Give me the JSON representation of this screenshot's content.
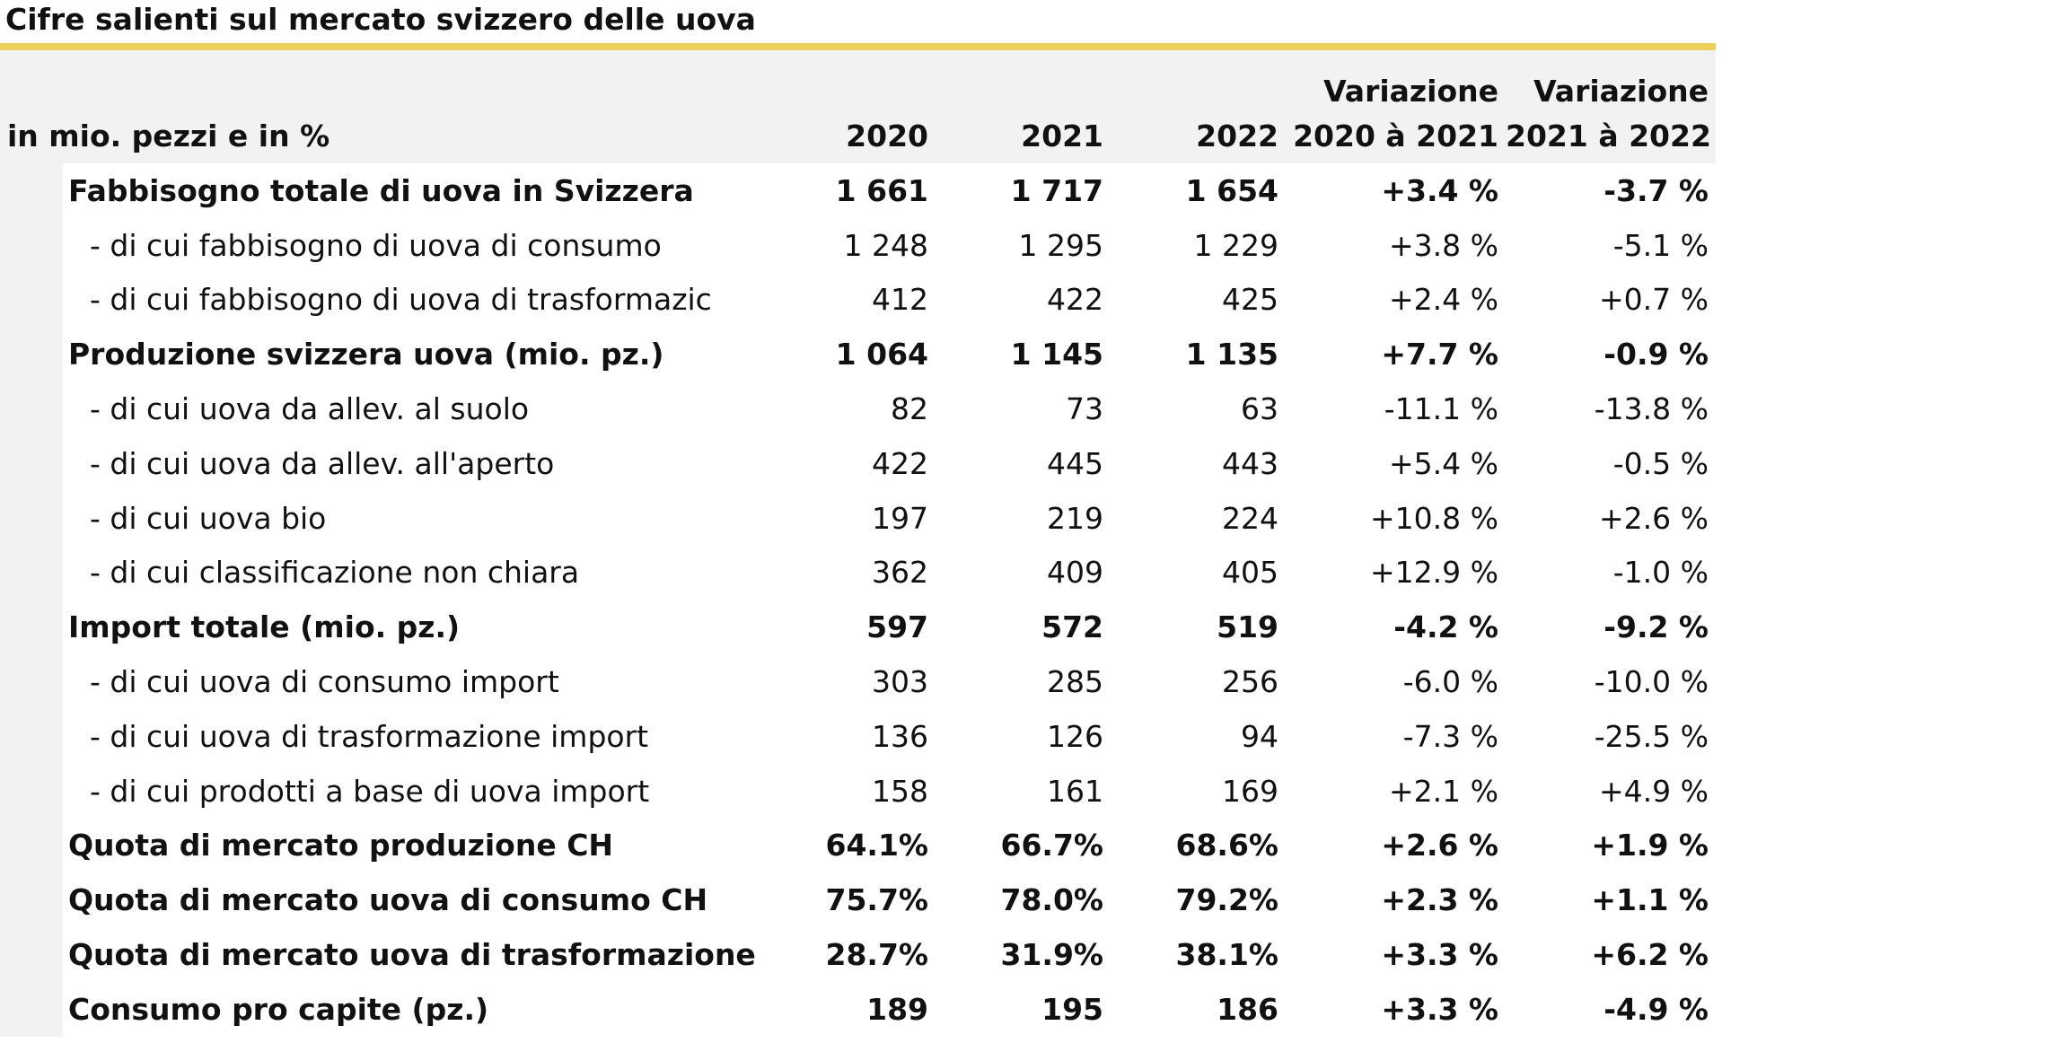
{
  "title": "Cifre salienti sul mercato svizzero delle uova",
  "colors": {
    "accent": "#ecd058",
    "header_bg": "#f2f2f2",
    "text": "#111111"
  },
  "chart_data": {
    "type": "table",
    "title": "Cifre salienti sul mercato svizzero delle uova",
    "unit_label": "in mio. pezzi e in %",
    "columns": [
      {
        "line1": "",
        "line2": "2020"
      },
      {
        "line1": "",
        "line2": "2021"
      },
      {
        "line1": "",
        "line2": "2022"
      },
      {
        "line1": "Variazione",
        "line2": "2020 à 2021"
      },
      {
        "line1": "Variazione",
        "line2": "2021 à 2022"
      }
    ],
    "rows": [
      {
        "label": "Fabbisogno totale di uova in Svizzera",
        "level": 0,
        "bold": true,
        "values": [
          "1 661",
          "1 717",
          "1 654",
          "+3.4 %",
          "-3.7 %"
        ]
      },
      {
        "label": "- di cui fabbisogno di uova di consumo",
        "level": 1,
        "bold": false,
        "values": [
          "1 248",
          "1 295",
          "1 229",
          "+3.8 %",
          "-5.1 %"
        ]
      },
      {
        "label": "- di cui fabbisogno di uova di trasformazic",
        "level": 1,
        "bold": false,
        "values": [
          "412",
          "422",
          "425",
          "+2.4 %",
          "+0.7 %"
        ]
      },
      {
        "label": "Produzione svizzera uova (mio. pz.)",
        "level": 0,
        "bold": true,
        "values": [
          "1 064",
          "1 145",
          "1 135",
          "+7.7 %",
          "-0.9 %"
        ]
      },
      {
        "label": "- di cui uova da allev. al suolo",
        "level": 1,
        "bold": false,
        "values": [
          "82",
          "73",
          "63",
          "-11.1 %",
          "-13.8 %"
        ]
      },
      {
        "label": "- di cui uova da allev. all'aperto",
        "level": 1,
        "bold": false,
        "values": [
          "422",
          "445",
          "443",
          "+5.4 %",
          "-0.5 %"
        ]
      },
      {
        "label": "- di cui uova bio",
        "level": 1,
        "bold": false,
        "values": [
          "197",
          "219",
          "224",
          "+10.8 %",
          "+2.6 %"
        ]
      },
      {
        "label": "- di cui classificazione non chiara",
        "level": 1,
        "bold": false,
        "values": [
          "362",
          "409",
          "405",
          "+12.9 %",
          "-1.0 %"
        ]
      },
      {
        "label": "Import totale (mio. pz.)",
        "level": 0,
        "bold": true,
        "values": [
          "597",
          "572",
          "519",
          "-4.2 %",
          "-9.2 %"
        ]
      },
      {
        "label": "- di cui uova di consumo import",
        "level": 1,
        "bold": false,
        "values": [
          "303",
          "285",
          "256",
          "-6.0 %",
          "-10.0 %"
        ]
      },
      {
        "label": "- di cui uova di trasformazione import",
        "level": 1,
        "bold": false,
        "values": [
          "136",
          "126",
          "94",
          "-7.3 %",
          "-25.5 %"
        ]
      },
      {
        "label": "- di cui prodotti a base di uova import",
        "level": 1,
        "bold": false,
        "values": [
          "158",
          "161",
          "169",
          "+2.1 %",
          "+4.9 %"
        ]
      },
      {
        "label": "Quota di mercato produzione CH",
        "level": 0,
        "bold": true,
        "values": [
          "64.1%",
          "66.7%",
          "68.6%",
          "+2.6 %",
          "+1.9 %"
        ]
      },
      {
        "label": "Quota di mercato uova di consumo CH",
        "level": 0,
        "bold": true,
        "values": [
          "75.7%",
          "78.0%",
          "79.2%",
          "+2.3 %",
          "+1.1 %"
        ]
      },
      {
        "label": "Quota di mercato uova di trasformazione C",
        "level": 0,
        "bold": true,
        "values": [
          "28.7%",
          "31.9%",
          "38.1%",
          "+3.3 %",
          "+6.2 %"
        ]
      },
      {
        "label": "Consumo pro capite (pz.)",
        "level": 0,
        "bold": true,
        "values": [
          "189",
          "195",
          "186",
          "+3.3 %",
          "-4.9 %"
        ]
      }
    ]
  }
}
